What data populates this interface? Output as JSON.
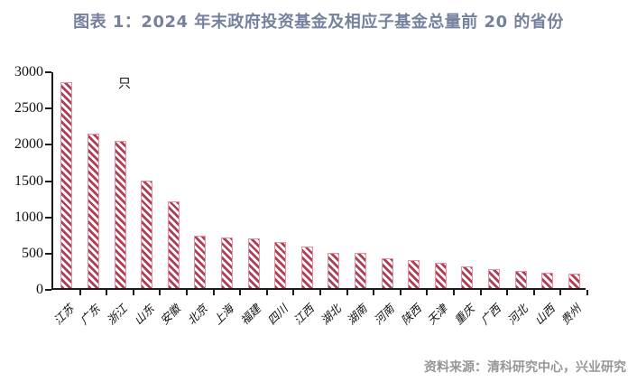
{
  "page": {
    "title": "图表 1：2024 年末政府投资基金及相应子基金总量前 20 的省份",
    "source_note": "资料来源：清科研究中心，兴业研究"
  },
  "colors": {
    "title_color": "#75819e",
    "bar_stripe": "#b23d56",
    "bar_border": "#ea8fa0",
    "axis": "#1a1a1a",
    "source_text": "#969696"
  },
  "chart_data": {
    "type": "bar",
    "title": "图表 1：2024 年末政府投资基金及相应子基金总量前 20 的省份",
    "unit_label": "只",
    "categories": [
      "江苏",
      "广东",
      "浙江",
      "山东",
      "安徽",
      "北京",
      "上海",
      "福建",
      "四川",
      "江西",
      "湖北",
      "湖南",
      "河南",
      "陕西",
      "天津",
      "重庆",
      "广西",
      "河北",
      "山西",
      "贵州"
    ],
    "values": [
      2840,
      2125,
      2030,
      1480,
      1200,
      720,
      700,
      690,
      630,
      570,
      490,
      480,
      410,
      380,
      350,
      300,
      265,
      240,
      215,
      200
    ],
    "xlabel": "",
    "ylabel": "",
    "ylim": [
      0,
      3000
    ],
    "yticks": [
      0,
      500,
      1000,
      1500,
      2000,
      2500,
      3000
    ],
    "grid": false,
    "legend_position": "none",
    "hatch": "diagonal-stripes",
    "source": "资料来源：清科研究中心，兴业研究"
  }
}
